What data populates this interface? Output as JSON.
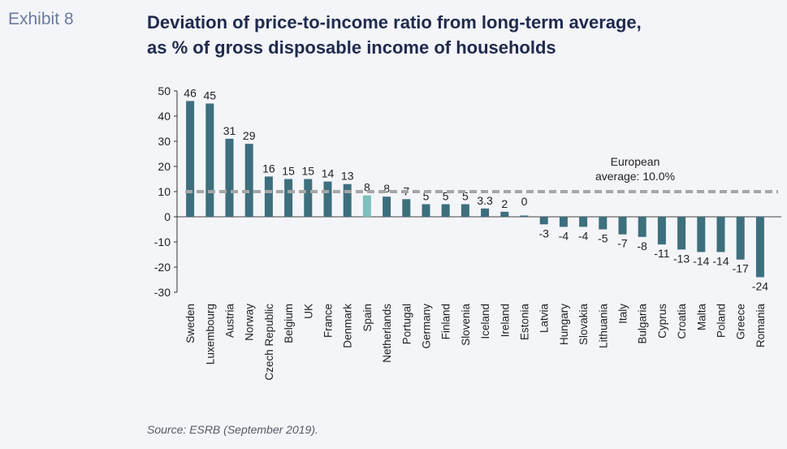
{
  "exhibit_label": "Exhibit 8",
  "title_line1": "Deviation of price-to-income ratio from long-term average,",
  "title_line2": "as % of gross disposable income of households",
  "source": "Source: ESRB (September 2019).",
  "chart_data": {
    "type": "bar",
    "categories": [
      "Sweden",
      "Luxembourg",
      "Austria",
      "Norway",
      "Czech Republic",
      "Belgium",
      "UK",
      "France",
      "Denmark",
      "Spain",
      "Netherlands",
      "Portugal",
      "Germany",
      "Finland",
      "Slovenia",
      "Iceland",
      "Ireland",
      "Estonia",
      "Latvia",
      "Hungary",
      "Slovakia",
      "Lithuania",
      "Italy",
      "Bulgaria",
      "Cyprus",
      "Croatia",
      "Malta",
      "Poland",
      "Greece",
      "Romania"
    ],
    "values": [
      46,
      45,
      31,
      29,
      16,
      15,
      15,
      14,
      13,
      8.5,
      8,
      7,
      5,
      5,
      5,
      3.3,
      2,
      0.5,
      -3,
      -4,
      -4,
      -5,
      -7,
      -8,
      -11,
      -13,
      -14,
      -14,
      -17,
      -24
    ],
    "data_labels": [
      "46",
      "45",
      "31",
      "29",
      "16",
      "15",
      "15",
      "14",
      "13",
      "8",
      "8",
      "7",
      "5",
      "5",
      "5",
      "3.3",
      "2",
      "0",
      "-3",
      "-4",
      "-4",
      "-5",
      "-7",
      "-8",
      "-11",
      "-13",
      "-14",
      "-14",
      "-17",
      "-24"
    ],
    "highlight_category": "Spain",
    "ylim": [
      -30,
      50
    ],
    "yticks": [
      50,
      40,
      30,
      20,
      10,
      0,
      -10,
      -20,
      -30
    ],
    "reference_line": {
      "value": 10,
      "label_line1": "European",
      "label_line2": "average: 10.0%"
    },
    "colors": {
      "bar": "#3d6f7d",
      "highlight": "#7fbfbd",
      "reference": "#a6a6a6"
    },
    "grid": false,
    "legend": "none"
  }
}
